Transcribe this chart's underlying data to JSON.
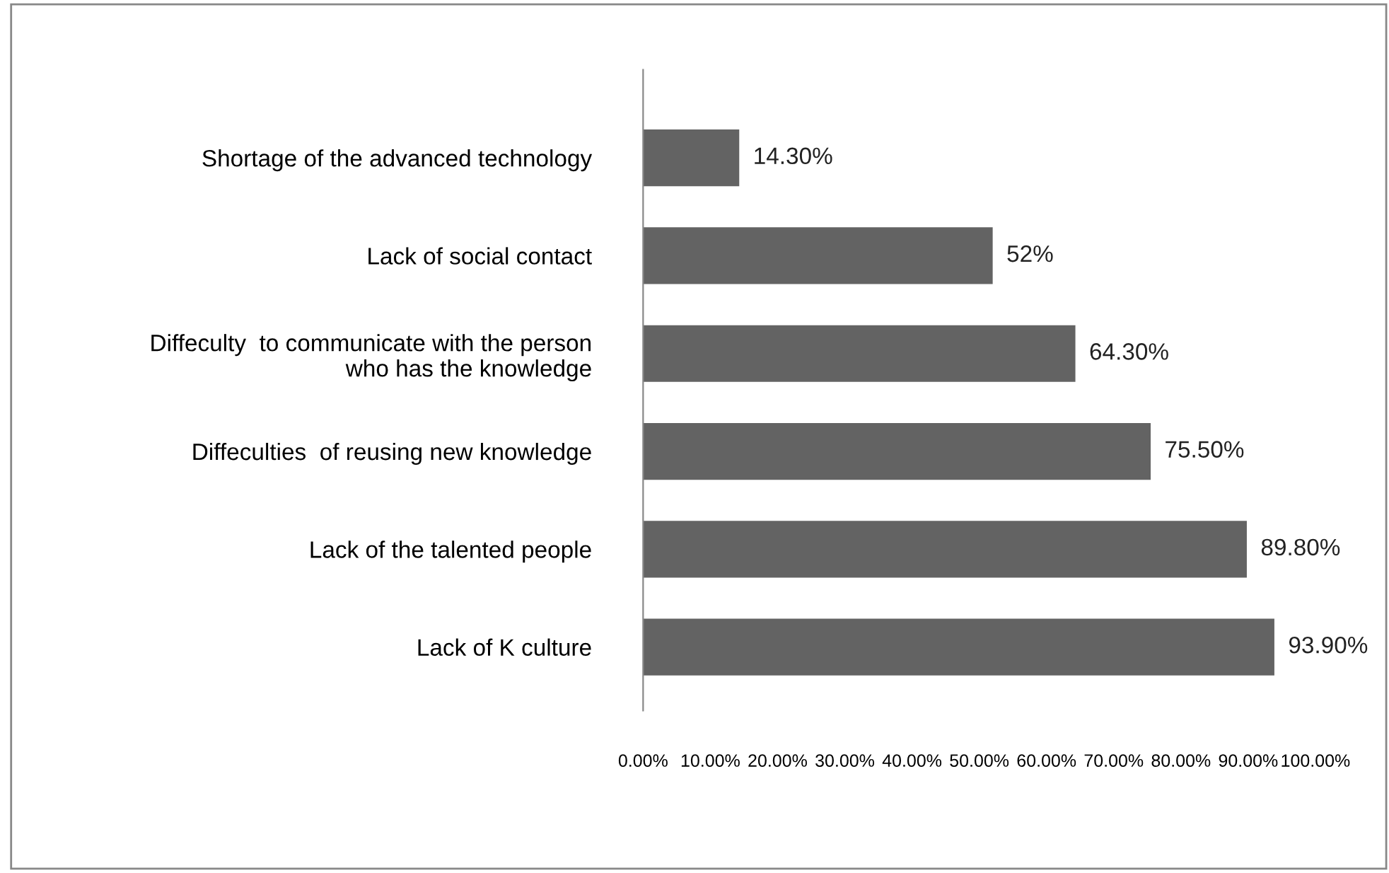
{
  "chart_data": {
    "type": "bar",
    "orientation": "horizontal",
    "categories": [
      "Shortage of the advanced technology",
      "Lack of social contact",
      "Diffeculty  to communicate with the person\nwho has the knowledge",
      "Diffeculties  of reusing new knowledge",
      "Lack of the talented people",
      "Lack of K culture"
    ],
    "values": [
      14.3,
      52,
      64.3,
      75.5,
      89.8,
      93.9
    ],
    "value_labels": [
      "14.30%",
      "52%",
      "64.30%",
      "75.50%",
      "89.80%",
      "93.90%"
    ],
    "color": "#636363",
    "xlim": [
      0,
      100
    ],
    "xticks": [
      {
        "value": 0,
        "label": "0.00%"
      },
      {
        "value": 10,
        "label": "10.00%"
      },
      {
        "value": 20,
        "label": "20.00%"
      },
      {
        "value": 30,
        "label": "30.00%"
      },
      {
        "value": 40,
        "label": "40.00%"
      },
      {
        "value": 50,
        "label": "50.00%"
      },
      {
        "value": 60,
        "label": "60.00%"
      },
      {
        "value": 70,
        "label": "70.00%"
      },
      {
        "value": 80,
        "label": "80.00%"
      },
      {
        "value": 90,
        "label": "90.00%"
      },
      {
        "value": 100,
        "label": "100.00%"
      }
    ],
    "grid": false
  }
}
